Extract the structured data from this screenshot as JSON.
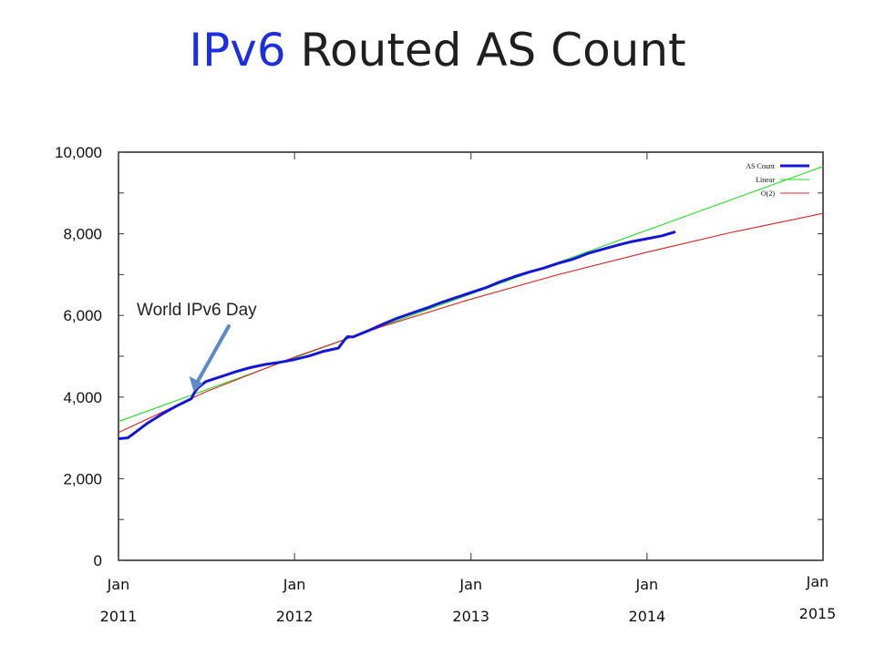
{
  "title": {
    "part1": "IPv6",
    "part2": " Routed AS Count"
  },
  "colors": {
    "title_highlight": "#1d2ee0",
    "as_count": "#1515d8",
    "linear": "#22dd22",
    "o2": "#e02020",
    "arrow": "#5b8ac8"
  },
  "chart_data": {
    "type": "line",
    "xlabel": "",
    "ylabel": "",
    "x_range": [
      "2011-01-01",
      "2015-01-01"
    ],
    "ylim": [
      0,
      10000
    ],
    "y_ticks": [
      {
        "value": 0,
        "label": "0"
      },
      {
        "value": 2000,
        "label": "2,000"
      },
      {
        "value": 4000,
        "label": "4,000"
      },
      {
        "value": 6000,
        "label": "6,000"
      },
      {
        "value": 8000,
        "label": "8,000"
      },
      {
        "value": 10000,
        "label": "10,000"
      }
    ],
    "x_ticks": [
      {
        "date": "2011-01-01",
        "label1": "Jan",
        "label2": "2011"
      },
      {
        "date": "2012-01-01",
        "label1": "Jan",
        "label2": "2012"
      },
      {
        "date": "2013-01-01",
        "label1": "Jan",
        "label2": "2013"
      },
      {
        "date": "2014-01-01",
        "label1": "Jan",
        "label2": "2014"
      },
      {
        "date": "2015-01-01",
        "label1": "Jan",
        "label2": "2015"
      }
    ],
    "grid": false,
    "legend_position": "top-right",
    "series": [
      {
        "name": "AS Count",
        "x": [
          "2011-01-01",
          "2011-01-20",
          "2011-02-01",
          "2011-03-01",
          "2011-04-01",
          "2011-05-01",
          "2011-06-01",
          "2011-06-08",
          "2011-06-15",
          "2011-07-01",
          "2011-08-01",
          "2011-09-01",
          "2011-10-01",
          "2011-11-01",
          "2011-12-01",
          "2012-01-01",
          "2012-02-01",
          "2012-03-01",
          "2012-04-01",
          "2012-04-15",
          "2012-04-20",
          "2012-05-01",
          "2012-06-01",
          "2012-07-01",
          "2012-08-01",
          "2012-09-01",
          "2012-10-01",
          "2012-11-01",
          "2012-12-01",
          "2013-01-01",
          "2013-02-01",
          "2013-03-01",
          "2013-04-01",
          "2013-05-01",
          "2013-06-01",
          "2013-07-01",
          "2013-08-01",
          "2013-09-01",
          "2013-10-01",
          "2013-11-01",
          "2013-12-01",
          "2014-01-01",
          "2014-02-01",
          "2014-03-01"
        ],
        "y": [
          2980,
          3000,
          3100,
          3350,
          3580,
          3780,
          3960,
          4120,
          4230,
          4380,
          4500,
          4620,
          4720,
          4800,
          4850,
          4920,
          5010,
          5120,
          5200,
          5420,
          5480,
          5470,
          5620,
          5780,
          5930,
          6060,
          6180,
          6320,
          6440,
          6560,
          6680,
          6820,
          6950,
          7060,
          7160,
          7280,
          7380,
          7520,
          7620,
          7720,
          7810,
          7880,
          7950,
          8050
        ]
      },
      {
        "name": "Linear",
        "x": [
          "2011-01-01",
          "2015-01-01"
        ],
        "y": [
          3400,
          9650
        ]
      },
      {
        "name": "O(2)",
        "x": [
          "2011-01-01",
          "2011-07-01",
          "2012-01-01",
          "2012-07-01",
          "2013-01-01",
          "2013-07-01",
          "2014-01-01",
          "2014-07-01",
          "2015-01-01"
        ],
        "y": [
          3130,
          4130,
          4980,
          5730,
          6400,
          7000,
          7550,
          8050,
          8500
        ]
      }
    ],
    "annotations": [
      {
        "text": "World IPv6 Day",
        "date": "2011-06-08",
        "value": 4200
      }
    ]
  }
}
